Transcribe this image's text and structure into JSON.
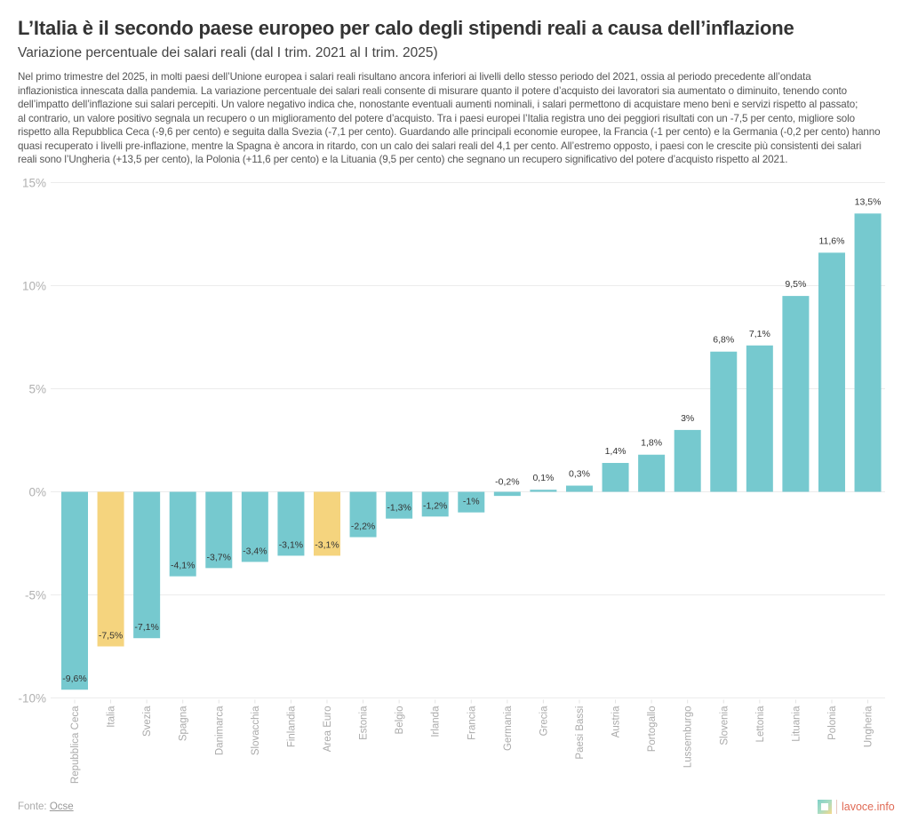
{
  "header": {
    "title": "L’Italia è il secondo paese europeo per calo degli stipendi reali a causa dell’inflazione",
    "subtitle": "Variazione percentuale dei salari reali (dal I trim. 2021 al I trim. 2025)",
    "description_lines": [
      "Nel primo trimestre del 2025, in molti paesi dell’Unione europea i salari reali risultano ancora inferiori ai livelli dello stesso periodo del 2021, ossia al periodo precedente all’ondata",
      "inflazionistica innescata dalla pandemia. La variazione percentuale dei salari reali consente di misurare quanto il potere d’acquisto dei lavoratori sia aumentato o diminuito, tenendo conto",
      "dell’impatto dell’inflazione sui salari percepiti. Un valore negativo indica che, nonostante eventuali aumenti nominali, i salari permettono di acquistare meno beni e servizi rispetto al passato;",
      "al contrario, un valore positivo segnala un recupero o un miglioramento del potere d’acquisto. Tra i paesi europei l’Italia registra uno dei peggiori risultati con un -7,5 per cento, migliore solo",
      "rispetto alla Repubblica Ceca (-9,6 per cento) e seguita dalla Svezia (-7,1 per cento). Guardando alle principali economie europee, la Francia (-1 per cento) e la Germania (-0,2 per cento) hanno",
      "quasi recuperato i livelli pre-inflazione, mentre la Spagna è ancora in ritardo, con un calo dei salari reali del 4,1 per cento. All’estremo opposto, i paesi con le crescite più consistenti dei salari",
      "reali sono l’Ungheria (+13,5 per cento), la Polonia (+11,6 per cento) e la Lituania (9,5 per cento) che segnano un recupero significativo del potere d’acquisto rispetto al 2021."
    ]
  },
  "footer": {
    "source_prefix": "Fonte: ",
    "source_link": "Ocse",
    "brand": "lavoce.info"
  },
  "colors": {
    "default_bar": "#76c9cf",
    "highlight_bar": "#f5d47e",
    "gridline": "#ececec",
    "brand": "#e06a55"
  },
  "chart_data": {
    "type": "bar",
    "title": "L’Italia è il secondo paese europeo per calo degli stipendi reali a causa dell’inflazione",
    "subtitle": "Variazione percentuale dei salari reali (dal I trim. 2021 al I trim. 2025)",
    "xlabel": "",
    "ylabel": "",
    "ylim": [
      -10,
      15
    ],
    "yticks": [
      15,
      10,
      5,
      0,
      -5,
      -10
    ],
    "ytick_labels": [
      "15%",
      "10%",
      "5%",
      "0%",
      "-5%",
      "-10%"
    ],
    "grid": true,
    "legend": "none",
    "categories": [
      "Repubblica Ceca",
      "Italia",
      "Svezia",
      "Spagna",
      "Danimarca",
      "Slovacchia",
      "Finlandia",
      "Area Euro",
      "Estonia",
      "Belgio",
      "Irlanda",
      "Francia",
      "Germania",
      "Grecia",
      "Paesi Bassi",
      "Austria",
      "Portogallo",
      "Lussemburgo",
      "Slovenia",
      "Lettonia",
      "Lituania",
      "Polonia",
      "Ungheria"
    ],
    "values": [
      -9.6,
      -7.5,
      -7.1,
      -4.1,
      -3.7,
      -3.4,
      -3.1,
      -3.1,
      -2.2,
      -1.3,
      -1.2,
      -1.0,
      -0.2,
      0.1,
      0.3,
      1.4,
      1.8,
      3.0,
      6.8,
      7.1,
      9.5,
      11.6,
      13.5
    ],
    "value_labels": [
      "-9,6%",
      "-7,5%",
      "-7,1%",
      "-4,1%",
      "-3,7%",
      "-3,4%",
      "-3,1%",
      "-3,1%",
      "-2,2%",
      "-1,3%",
      "-1,2%",
      "-1%",
      "-0,2%",
      "0,1%",
      "0,3%",
      "1,4%",
      "1,8%",
      "3%",
      "6,8%",
      "7,1%",
      "9,5%",
      "11,6%",
      "13,5%"
    ],
    "highlighted": [
      "Italia",
      "Area Euro"
    ]
  }
}
